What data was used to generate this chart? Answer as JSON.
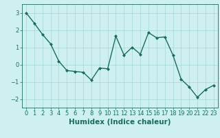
{
  "x": [
    0,
    1,
    2,
    3,
    4,
    5,
    6,
    7,
    8,
    9,
    10,
    11,
    12,
    13,
    14,
    15,
    16,
    17,
    18,
    19,
    20,
    21,
    22,
    23
  ],
  "y": [
    3.0,
    2.4,
    1.75,
    1.2,
    0.2,
    -0.35,
    -0.4,
    -0.45,
    -0.9,
    -0.2,
    -0.25,
    1.65,
    0.55,
    1.0,
    0.6,
    1.85,
    1.55,
    1.6,
    0.55,
    -0.85,
    -1.3,
    -1.9,
    -1.45,
    -1.2
  ],
  "line_color": "#1a6b5a",
  "marker": "D",
  "markersize": 2.0,
  "linewidth": 1.0,
  "bg_color": "#cff0f0",
  "grid_color": "#aadada",
  "xlabel": "Humidex (Indice chaleur)",
  "ylim": [
    -2.5,
    3.5
  ],
  "xlim": [
    -0.5,
    23.5
  ],
  "yticks": [
    -2,
    -1,
    0,
    1,
    2,
    3
  ],
  "xticks": [
    0,
    1,
    2,
    3,
    4,
    5,
    6,
    7,
    8,
    9,
    10,
    11,
    12,
    13,
    14,
    15,
    16,
    17,
    18,
    19,
    20,
    21,
    22,
    23
  ],
  "tick_color": "#1a6b5a",
  "label_color": "#1a6b5a",
  "xlabel_fontsize": 7.5,
  "tick_fontsize": 6.0
}
